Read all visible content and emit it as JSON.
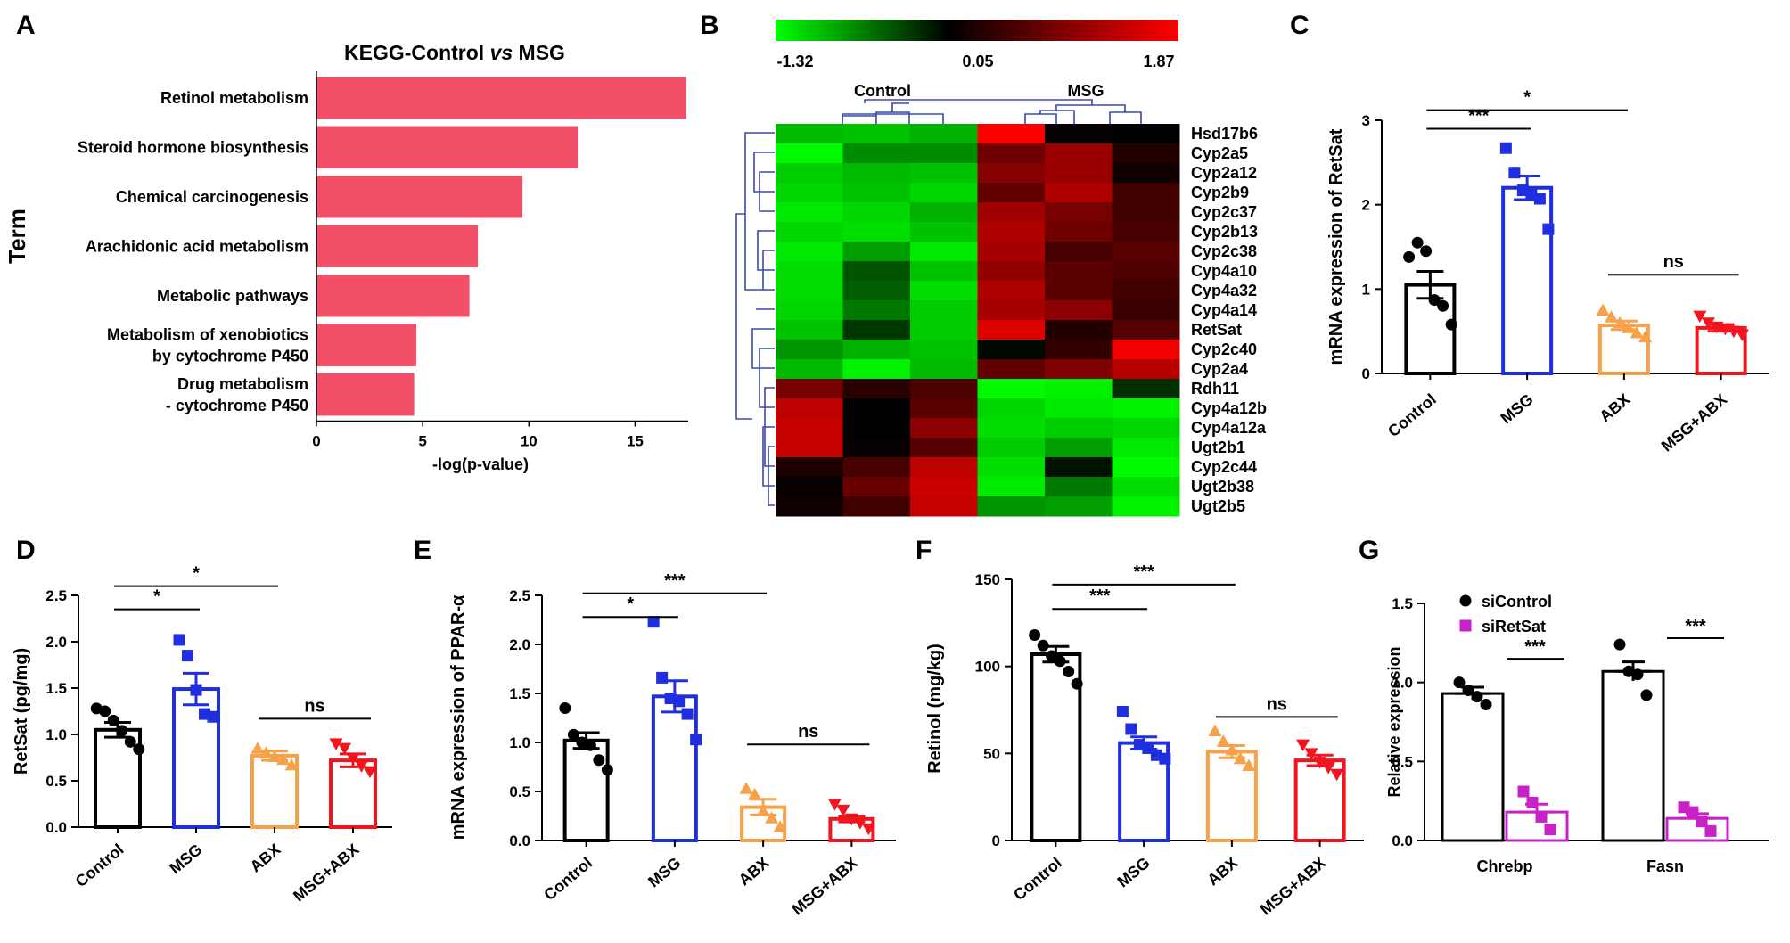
{
  "panels": {
    "A": {
      "label": "A"
    },
    "B": {
      "label": "B"
    },
    "C": {
      "label": "C"
    },
    "D": {
      "label": "D"
    },
    "E": {
      "label": "E"
    },
    "F": {
      "label": "F"
    },
    "G": {
      "label": "G"
    }
  },
  "colors": {
    "bar_pink": "#f25069",
    "control": "#000000",
    "msg": "#1f2fe0",
    "abx": "#f7a24a",
    "msg_abx": "#f0151e",
    "sicontrol": "#000000",
    "siretsat": "#c821c8",
    "heat_low": "#00ff00",
    "heat_mid": "#000000",
    "heat_high": "#ff0000",
    "dendro": "#3a48b0"
  },
  "chart_data": [
    {
      "id": "A",
      "type": "bar",
      "orientation": "horizontal",
      "title_prefix": "KEGG-Control ",
      "title_vs": "vs",
      "title_suffix": " MSG",
      "xlabel": "-log(p-value)",
      "ylabel": "Term",
      "xlim": [
        0,
        17.5
      ],
      "xticks": [
        "0",
        "5",
        "10",
        "15"
      ],
      "categories": [
        [
          "Retinol metabolism"
        ],
        [
          "Steroid hormone biosynthesis"
        ],
        [
          "Chemical carcinogenesis"
        ],
        [
          "Arachidonic acid metabolism"
        ],
        [
          "Metabolic pathways"
        ],
        [
          "Metabolism of xenobiotics",
          "by cytochrome P450"
        ],
        [
          "Drug metabolism",
          "- cytochrome P450"
        ]
      ],
      "values": [
        17.4,
        12.3,
        9.7,
        7.6,
        7.2,
        4.7,
        4.6
      ]
    },
    {
      "id": "B",
      "type": "heatmap",
      "scale_min": "-1.32",
      "scale_mid": "0.05",
      "scale_max": "1.87",
      "scale_range": [
        -1.32,
        1.87
      ],
      "groups": [
        "Control",
        "MSG"
      ],
      "rows": [
        "Hsd17b6",
        "Cyp2a5",
        "Cyp2a12",
        "Cyp2b9",
        "Cyp2c37",
        "Cyp2b13",
        "Cyp2c38",
        "Cyp4a10",
        "Cyp4a32",
        "Cyp4a14",
        "RetSat",
        "Cyp2c40",
        "Cyp2a4",
        "Rdh11",
        "Cyp4a12b",
        "Cyp4a12a",
        "Ugt2b1",
        "Cyp2c44",
        "Ugt2b38",
        "Ugt2b5"
      ],
      "matrix": [
        [
          -0.95,
          -1.0,
          -0.9,
          1.85,
          0.1,
          0.05
        ],
        [
          -1.3,
          -0.7,
          -0.7,
          0.85,
          1.15,
          0.3
        ],
        [
          -1.05,
          -0.95,
          -1.0,
          1.0,
          1.15,
          0.15
        ],
        [
          -1.1,
          -1.0,
          -1.1,
          0.75,
          1.3,
          0.5
        ],
        [
          -1.2,
          -1.1,
          -0.9,
          1.2,
          0.9,
          0.5
        ],
        [
          -1.1,
          -1.15,
          -1.0,
          1.3,
          0.85,
          0.55
        ],
        [
          -1.2,
          -0.8,
          -1.2,
          1.25,
          0.55,
          0.7
        ],
        [
          -1.15,
          -0.4,
          -1.0,
          1.1,
          0.7,
          0.6
        ],
        [
          -1.15,
          -0.45,
          -1.15,
          1.3,
          0.7,
          0.5
        ],
        [
          -1.1,
          -0.6,
          -1.05,
          1.25,
          1.05,
          0.45
        ],
        [
          -1.0,
          -0.25,
          -1.05,
          1.65,
          0.3,
          0.65
        ],
        [
          -0.75,
          -0.9,
          -1.0,
          0.0,
          0.4,
          1.8
        ],
        [
          -0.95,
          -1.25,
          -0.95,
          0.75,
          0.95,
          1.35
        ],
        [
          0.9,
          0.35,
          0.6,
          -1.3,
          -1.25,
          -0.2
        ],
        [
          1.4,
          0.05,
          0.7,
          -1.1,
          -1.2,
          -1.25
        ],
        [
          1.45,
          0.05,
          1.05,
          -1.15,
          -1.05,
          -1.1
        ],
        [
          1.45,
          0.1,
          0.65,
          -1.05,
          -0.8,
          -1.2
        ],
        [
          0.25,
          0.55,
          1.4,
          -1.15,
          -0.05,
          -1.3
        ],
        [
          0.1,
          0.8,
          1.5,
          -1.2,
          -0.6,
          -1.15
        ],
        [
          0.15,
          0.5,
          1.45,
          -0.75,
          -0.8,
          -1.25
        ]
      ]
    },
    {
      "id": "C",
      "type": "bar",
      "ylabel": "mRNA expression of RetSat",
      "ylim": [
        0,
        3
      ],
      "yticks": [
        "0",
        "1",
        "2",
        "3"
      ],
      "categories": [
        "Control",
        "MSG",
        "ABX",
        "MSG+ABX"
      ],
      "means": [
        1.05,
        2.2,
        0.57,
        0.54
      ],
      "sems": [
        0.16,
        0.14,
        0.05,
        0.04
      ],
      "points": [
        [
          1.38,
          1.55,
          1.45,
          0.87,
          0.8,
          0.58
        ],
        [
          2.67,
          2.38,
          2.17,
          2.13,
          2.07,
          1.71
        ],
        [
          0.75,
          0.67,
          0.6,
          0.54,
          0.48,
          0.43
        ],
        [
          0.68,
          0.6,
          0.55,
          0.53,
          0.5,
          0.46
        ]
      ],
      "markers": [
        "circle",
        "square",
        "triangle",
        "triangle-down"
      ],
      "comparisons": [
        {
          "from": 0,
          "to": 1,
          "label": "***",
          "level": 2.9
        },
        {
          "from": 0,
          "to": 2,
          "label": "*",
          "level": 3.12
        },
        {
          "from": 2,
          "to": 3,
          "label": "ns",
          "level": 1.17
        }
      ]
    },
    {
      "id": "D",
      "type": "bar",
      "ylabel": "RetSat (pg/mg)",
      "ylim": [
        0,
        2.5
      ],
      "yticks": [
        "0.0",
        "0.5",
        "1.0",
        "1.5",
        "2.0",
        "2.5"
      ],
      "categories": [
        "Control",
        "MSG",
        "ABX",
        "MSG+ABX"
      ],
      "means": [
        1.05,
        1.49,
        0.77,
        0.72
      ],
      "sems": [
        0.08,
        0.17,
        0.05,
        0.07
      ],
      "points": [
        [
          1.28,
          1.25,
          1.15,
          1.04,
          0.92,
          0.84
        ],
        [
          2.02,
          1.85,
          1.48,
          1.22,
          1.19
        ],
        [
          0.85,
          0.8,
          0.76,
          0.73,
          0.67
        ],
        [
          0.9,
          0.85,
          0.74,
          0.66,
          0.6
        ]
      ],
      "markers": [
        "circle",
        "square",
        "triangle",
        "triangle-down"
      ],
      "comparisons": [
        {
          "from": 0,
          "to": 1,
          "label": "*",
          "level": 2.35
        },
        {
          "from": 0,
          "to": 2,
          "label": "*",
          "level": 2.6
        },
        {
          "from": 2,
          "to": 3,
          "label": "ns",
          "level": 1.17
        }
      ]
    },
    {
      "id": "E",
      "type": "bar",
      "ylabel": "mRNA expression of PPAR-α",
      "ylim": [
        0,
        2.5
      ],
      "yticks": [
        "0.0",
        "0.5",
        "1.0",
        "1.5",
        "2.0",
        "2.5"
      ],
      "categories": [
        "Control",
        "MSG",
        "ABX",
        "MSG+ABX"
      ],
      "means": [
        1.02,
        1.47,
        0.34,
        0.22
      ],
      "sems": [
        0.08,
        0.16,
        0.08,
        0.03
      ],
      "points": [
        [
          1.35,
          1.08,
          1.0,
          0.97,
          0.82,
          0.72
        ],
        [
          2.23,
          1.66,
          1.45,
          1.42,
          1.29,
          1.03
        ],
        [
          0.53,
          0.47,
          0.3,
          0.23,
          0.14
        ],
        [
          0.37,
          0.31,
          0.22,
          0.18,
          0.12
        ]
      ],
      "markers": [
        "circle",
        "square",
        "triangle",
        "triangle-down"
      ],
      "comparisons": [
        {
          "from": 0,
          "to": 1,
          "label": "*",
          "level": 2.28
        },
        {
          "from": 0,
          "to": 2,
          "label": "***",
          "level": 2.52
        },
        {
          "from": 2,
          "to": 3,
          "label": "ns",
          "level": 0.98
        }
      ]
    },
    {
      "id": "F",
      "type": "bar",
      "ylabel": "Retinol (mg/kg)",
      "ylim": [
        0,
        150
      ],
      "yticks": [
        "0",
        "50",
        "100",
        "150"
      ],
      "categories": [
        "Control",
        "MSG",
        "ABX",
        "MSG+ABX"
      ],
      "means": [
        107,
        56,
        51,
        46
      ],
      "sems": [
        4.5,
        3.5,
        3.5,
        3
      ],
      "points": [
        [
          118,
          112,
          106,
          103,
          97,
          90
        ],
        [
          74,
          64,
          55,
          53,
          49,
          47
        ],
        [
          63,
          57,
          52,
          47,
          43
        ],
        [
          55,
          50,
          45,
          42,
          38
        ]
      ],
      "markers": [
        "circle",
        "square",
        "triangle",
        "triangle-down"
      ],
      "comparisons": [
        {
          "from": 0,
          "to": 1,
          "label": "***",
          "level": 133
        },
        {
          "from": 0,
          "to": 2,
          "label": "***",
          "level": 147
        },
        {
          "from": 2,
          "to": 3,
          "label": "ns",
          "level": 71
        }
      ]
    },
    {
      "id": "G",
      "type": "bar",
      "ylabel": "Relative expression",
      "ylim": [
        0,
        1.5
      ],
      "yticks": [
        "0.0",
        "0.5",
        "1.0",
        "1.5"
      ],
      "categories": [
        "Chrebp",
        "Fasn"
      ],
      "series": [
        {
          "name": "siControl",
          "values": [
            0.93,
            1.07
          ],
          "sems": [
            0.04,
            0.06
          ],
          "points": [
            [
              1.0,
              0.95,
              0.91,
              0.86
            ],
            [
              1.24,
              1.07,
              1.05,
              0.92
            ]
          ],
          "marker": "circle"
        },
        {
          "name": "siRetSat",
          "values": [
            0.18,
            0.14
          ],
          "sems": [
            0.05,
            0.03
          ],
          "points": [
            [
              0.31,
              0.24,
              0.15,
              0.07
            ],
            [
              0.21,
              0.18,
              0.12,
              0.06
            ]
          ],
          "marker": "square"
        }
      ],
      "comparisons": [
        {
          "group": 0,
          "label": "***",
          "level": 1.15
        },
        {
          "group": 1,
          "label": "***",
          "level": 1.28
        }
      ]
    }
  ]
}
